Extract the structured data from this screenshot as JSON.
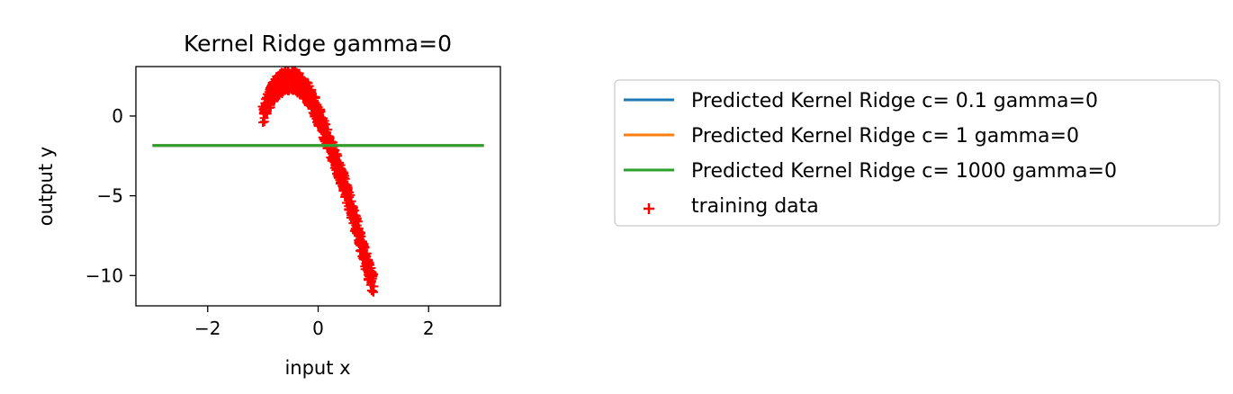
{
  "chart_data": {
    "type": "line",
    "title": "Kernel Ridge gamma=0",
    "xlabel": "input x",
    "ylabel": "output y",
    "xlim": [
      -3.3,
      3.3
    ],
    "ylim": [
      -11.9,
      3.1
    ],
    "xticks": [
      -2,
      0,
      2
    ],
    "xtick_labels": [
      "−2",
      "0",
      "2"
    ],
    "yticks": [
      0,
      -5,
      -10
    ],
    "ytick_labels": [
      "0",
      "−5",
      "−10"
    ],
    "grid": false,
    "legend_position": "right",
    "series": [
      {
        "name": "Predicted Kernel Ridge c= 0.1 gamma=0",
        "color": "#1f77b4",
        "x": [
          -3,
          3
        ],
        "y": [
          -1.85,
          -1.85
        ]
      },
      {
        "name": "Predicted Kernel Ridge c= 1 gamma=0",
        "color": "#ff7f0e",
        "x": [
          -3,
          3
        ],
        "y": [
          -1.85,
          -1.85
        ]
      },
      {
        "name": "Predicted Kernel Ridge c= 1000 gamma=0",
        "color": "#2ca02c",
        "x": [
          -3,
          3
        ],
        "y": [
          -1.85,
          -1.85
        ]
      }
    ],
    "scatter": {
      "name": "training data",
      "color": "#ff0000",
      "marker": "+",
      "x_range": [
        -1.05,
        1.05
      ],
      "points": [
        [
          -1.0,
          0.0
        ],
        [
          -0.9,
          1.0
        ],
        [
          -0.8,
          1.6
        ],
        [
          -0.7,
          2.0
        ],
        [
          -0.6,
          2.2
        ],
        [
          -0.5,
          2.3
        ],
        [
          -0.4,
          2.2
        ],
        [
          -0.3,
          1.9
        ],
        [
          -0.2,
          1.5
        ],
        [
          -0.1,
          0.9
        ],
        [
          0.0,
          0.1
        ],
        [
          0.1,
          -0.8
        ],
        [
          0.2,
          -1.7
        ],
        [
          0.3,
          -2.6
        ],
        [
          0.4,
          -3.6
        ],
        [
          0.5,
          -4.6
        ],
        [
          0.6,
          -5.8
        ],
        [
          0.7,
          -7.0
        ],
        [
          0.8,
          -8.3
        ],
        [
          0.9,
          -9.5
        ],
        [
          1.0,
          -10.6
        ]
      ]
    }
  }
}
